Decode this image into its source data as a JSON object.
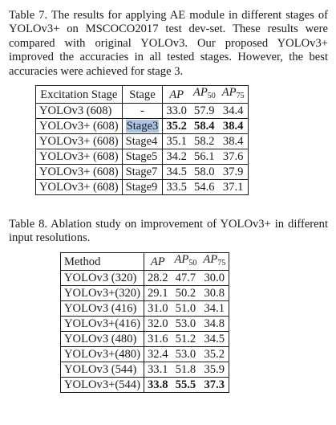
{
  "table7": {
    "caption": "Table 7. The results for applying AE module in different stages of YOLOv3+ on MSCOCO2017 test dev-set. These results were compared with original YOLOv3. Our proposed YOLOv3+ improved the accuracies in all tested stages. However, the best accuracies were achieved for stage 3.",
    "headers": [
      "Excitation Stage",
      "Stage",
      "AP",
      "AP",
      "50",
      "AP",
      "75"
    ],
    "rows": [
      {
        "method": "YOLOv3  (608)",
        "stage": "-",
        "ap": "33.0",
        "ap50": "57.9",
        "ap75": "34.4"
      },
      {
        "method": "YOLOv3+ (608)",
        "stage": "Stage3",
        "ap": "35.2",
        "ap50": "58.4",
        "ap75": "38.4"
      },
      {
        "method": "YOLOv3+ (608)",
        "stage": "Stage4",
        "ap": "35.1",
        "ap50": "58.2",
        "ap75": "38.4"
      },
      {
        "method": "YOLOv3+ (608)",
        "stage": "Stage5",
        "ap": "34.2",
        "ap50": "56.1",
        "ap75": "37.6"
      },
      {
        "method": "YOLOv3+ (608)",
        "stage": "Stage7",
        "ap": "34.5",
        "ap50": "58.0",
        "ap75": "37.9"
      },
      {
        "method": "YOLOv3+ (608)",
        "stage": "Stage9",
        "ap": "33.5",
        "ap50": "54.6",
        "ap75": "37.1"
      }
    ]
  },
  "table8": {
    "caption": "Table 8. Ablation study on improvement of YOLOv3+ in different input resolutions.",
    "headers": [
      "Method",
      "AP",
      "AP",
      "50",
      "AP",
      "75"
    ],
    "rows": [
      {
        "method": "YOLOv3 (320)",
        "ap": "28.2",
        "ap50": "47.7",
        "ap75": "30.0"
      },
      {
        "method": "YOLOv3+(320)",
        "ap": "29.1",
        "ap50": "50.2",
        "ap75": "30.8"
      },
      {
        "method": "YOLOv3 (416)",
        "ap": "31.0",
        "ap50": "51.0",
        "ap75": "34.1"
      },
      {
        "method": "YOLOv3+(416)",
        "ap": "32.0",
        "ap50": "53.0",
        "ap75": "34.8"
      },
      {
        "method": "YOLOv3 (480)",
        "ap": "31.6",
        "ap50": "51.2",
        "ap75": "34.5"
      },
      {
        "method": "YOLOv3+(480)",
        "ap": "32.4",
        "ap50": "53.0",
        "ap75": "35.2"
      },
      {
        "method": "YOLOv3 (544)",
        "ap": "33.1",
        "ap50": "51.8",
        "ap75": "35.9"
      },
      {
        "method": "YOLOv3+(544)",
        "ap": "33.8",
        "ap50": "55.5",
        "ap75": "37.3"
      }
    ]
  }
}
